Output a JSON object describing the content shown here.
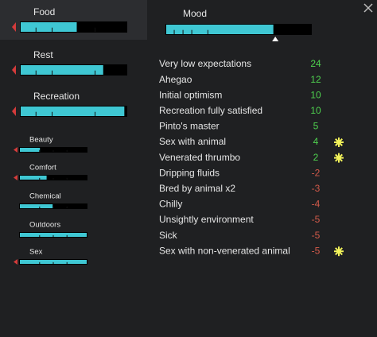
{
  "needs": [
    {
      "label": "Food",
      "level": 0.53
    },
    {
      "label": "Rest",
      "level": 0.78
    },
    {
      "label": "Recreation",
      "level": 0.98
    }
  ],
  "small_needs": [
    {
      "label": "Beauty",
      "level": 0.3
    },
    {
      "label": "Comfort",
      "level": 0.4
    },
    {
      "label": "Chemical",
      "level": 0.49
    },
    {
      "label": "Outdoors",
      "level": 1.0
    },
    {
      "label": "Sex",
      "level": 1.0
    }
  ],
  "mood": {
    "label": "Mood",
    "level": 0.74,
    "thoughts": [
      {
        "label": "Very low expectations",
        "value": 24,
        "star": false
      },
      {
        "label": "Ahegao",
        "value": 12,
        "star": false
      },
      {
        "label": "Initial optimism",
        "value": 10,
        "star": false
      },
      {
        "label": "Recreation fully satisfied",
        "value": 10,
        "star": false
      },
      {
        "label": "Pinto's master",
        "value": 5,
        "star": false
      },
      {
        "label": "Sex with animal",
        "value": 4,
        "star": true
      },
      {
        "label": "Venerated thrumbo",
        "value": 2,
        "star": true
      },
      {
        "label": "Dripping fluids",
        "value": -2,
        "star": false
      },
      {
        "label": "Bred by animal x2",
        "value": -3,
        "star": false
      },
      {
        "label": "Chilly",
        "value": -4,
        "star": false
      },
      {
        "label": "Unsightly environment",
        "value": -5,
        "star": false
      },
      {
        "label": "Sick",
        "value": -5,
        "star": false
      },
      {
        "label": "Sex with non-venerated animal",
        "value": -5,
        "star": true
      }
    ]
  }
}
